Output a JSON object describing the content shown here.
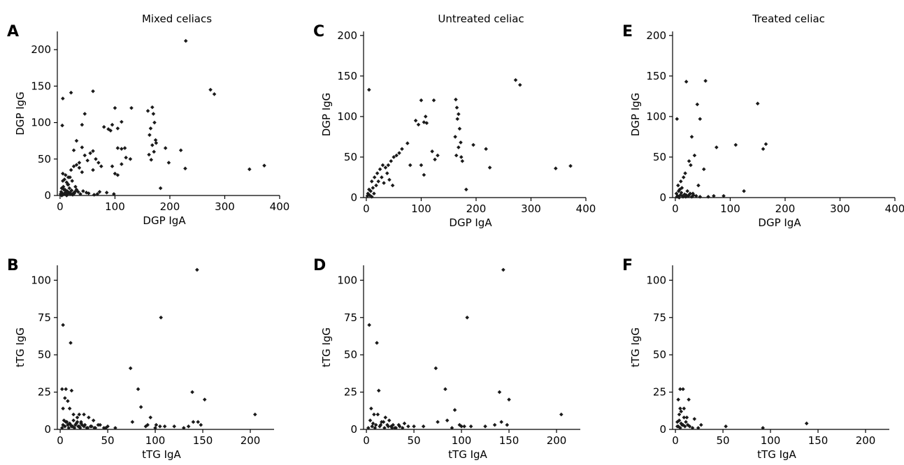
{
  "column_titles": [
    "Mixed celiacs",
    "Untreated celiac",
    "Treated celiac"
  ],
  "chart_data": [
    {
      "panel": "A",
      "type": "scatter",
      "title": "Mixed celiacs",
      "xlabel": "DGP IgA",
      "ylabel": "DGP IgG",
      "xlim": [
        -5,
        400
      ],
      "ylim": [
        0,
        225
      ],
      "xticks": [
        0,
        100,
        200,
        300,
        400
      ],
      "yticks": [
        0,
        50,
        100,
        150,
        200
      ],
      "x": [
        229,
        274,
        281,
        60,
        20,
        5,
        4,
        45,
        40,
        100,
        130,
        112,
        105,
        118,
        160,
        168,
        170,
        172,
        165,
        163,
        174,
        175,
        168,
        171,
        162,
        166,
        80,
        88,
        95,
        92,
        105,
        112,
        120,
        128,
        192,
        198,
        220,
        228,
        345,
        372,
        183,
        95,
        100,
        105,
        112,
        30,
        25,
        40,
        45,
        55,
        60,
        65,
        70,
        75,
        35,
        50,
        60,
        5,
        10,
        15,
        20,
        25,
        30,
        35,
        40,
        5,
        8,
        12,
        15,
        18,
        22,
        28,
        3,
        6,
        9,
        11,
        14,
        17,
        2,
        4,
        7,
        10,
        13,
        16,
        19,
        21,
        24,
        27,
        1,
        3,
        5,
        8,
        12,
        14,
        18,
        23,
        26,
        30,
        33,
        37,
        42,
        48,
        52,
        62,
        68,
        72,
        85,
        98
      ],
      "y": [
        212,
        145,
        139,
        143,
        141,
        133,
        96,
        112,
        97,
        120,
        120,
        101,
        92,
        65,
        116,
        121,
        112,
        100,
        92,
        83,
        76,
        72,
        69,
        60,
        56,
        49,
        94,
        91,
        97,
        89,
        65,
        64,
        52,
        50,
        65,
        45,
        62,
        37,
        36,
        41,
        10,
        40,
        30,
        28,
        43,
        75,
        62,
        66,
        55,
        58,
        61,
        50,
        45,
        40,
        45,
        48,
        35,
        30,
        28,
        25,
        35,
        40,
        42,
        38,
        32,
        20,
        22,
        18,
        15,
        25,
        20,
        12,
        10,
        12,
        8,
        5,
        15,
        10,
        5,
        3,
        8,
        2,
        6,
        4,
        2,
        7,
        3,
        5,
        2,
        0,
        1,
        3,
        0,
        2,
        4,
        1,
        3,
        8,
        5,
        2,
        6,
        4,
        3,
        1,
        2,
        5,
        4,
        2
      ]
    },
    {
      "panel": "B",
      "type": "scatter",
      "xlabel": "tTG IgA",
      "ylabel": "tTG IgG",
      "xlim": [
        -3,
        225
      ],
      "ylim": [
        0,
        110
      ],
      "xticks": [
        0,
        50,
        100,
        150,
        200
      ],
      "yticks": [
        0,
        25,
        50,
        75,
        100
      ],
      "x": [
        144,
        106,
        3,
        11,
        74,
        82,
        139,
        152,
        205,
        2,
        6,
        12,
        5,
        8,
        3,
        10,
        14,
        20,
        25,
        22,
        18,
        30,
        35,
        40,
        50,
        76,
        85,
        92,
        95,
        101,
        105,
        120,
        135,
        140,
        145,
        148,
        4,
        6,
        8,
        10,
        12,
        14,
        16,
        18,
        20,
        22,
        26,
        28,
        32,
        36,
        42,
        46,
        2,
        3,
        5,
        7,
        9,
        11,
        13,
        15,
        17,
        19,
        21,
        23,
        25,
        29,
        33,
        37,
        48,
        58,
        90,
        100,
        110,
        130
      ],
      "y": [
        107,
        75,
        70,
        58,
        41,
        27,
        25,
        20,
        10,
        27,
        27,
        26,
        21,
        19,
        14,
        14,
        10,
        10,
        10,
        5,
        8,
        8,
        6,
        3,
        2,
        5,
        15,
        3,
        8,
        3,
        2,
        2,
        2,
        5,
        5,
        3,
        6,
        5,
        3,
        4,
        2,
        6,
        3,
        5,
        2,
        4,
        3,
        1,
        2,
        1,
        3,
        1,
        1,
        3,
        2,
        5,
        1,
        3,
        2,
        1,
        4,
        2,
        1,
        3,
        2,
        1,
        2,
        1,
        1,
        1,
        2,
        1,
        2,
        1
      ]
    },
    {
      "panel": "C",
      "type": "scatter",
      "title": "Untreated celiac",
      "xlabel": "DGP IgA",
      "ylabel": "DGP IgG",
      "xlim": [
        -5,
        400
      ],
      "ylim": [
        0,
        205
      ],
      "xticks": [
        0,
        100,
        200,
        300,
        400
      ],
      "yticks": [
        0,
        50,
        100,
        150,
        200
      ],
      "x": [
        5,
        272,
        280,
        100,
        108,
        123,
        163,
        165,
        168,
        166,
        170,
        162,
        172,
        168,
        164,
        175,
        173,
        90,
        95,
        105,
        110,
        120,
        125,
        130,
        195,
        218,
        225,
        345,
        372,
        182,
        100,
        105,
        60,
        65,
        75,
        80,
        50,
        55,
        45,
        40,
        35,
        30,
        25,
        20,
        15,
        10,
        5,
        3,
        8,
        12,
        18,
        22,
        28,
        32,
        38,
        42,
        48,
        2,
        6,
        10,
        14
      ],
      "y": [
        133,
        145,
        139,
        120,
        100,
        120,
        121,
        111,
        103,
        97,
        85,
        75,
        68,
        62,
        52,
        45,
        50,
        95,
        90,
        93,
        92,
        57,
        47,
        52,
        65,
        60,
        37,
        36,
        39,
        10,
        40,
        28,
        55,
        60,
        67,
        40,
        50,
        52,
        45,
        40,
        37,
        40,
        35,
        30,
        25,
        20,
        10,
        5,
        8,
        12,
        15,
        20,
        25,
        18,
        30,
        22,
        15,
        2,
        3,
        1,
        5
      ]
    },
    {
      "panel": "D",
      "type": "scatter",
      "xlabel": "tTG IgA",
      "ylabel": "tTG IgG",
      "xlim": [
        -3,
        225
      ],
      "ylim": [
        0,
        110
      ],
      "xticks": [
        0,
        50,
        100,
        150,
        200
      ],
      "yticks": [
        0,
        25,
        50,
        75,
        100
      ],
      "x": [
        144,
        106,
        3,
        11,
        73,
        83,
        140,
        150,
        205,
        13,
        5,
        8,
        12,
        16,
        20,
        24,
        28,
        35,
        40,
        50,
        75,
        85,
        93,
        98,
        103,
        110,
        125,
        135,
        142,
        148,
        4,
        7,
        10,
        14,
        18,
        22,
        26,
        30,
        34,
        38,
        44,
        2,
        6,
        9,
        15,
        19,
        23,
        27,
        31,
        60,
        90,
        100
      ],
      "y": [
        107,
        75,
        70,
        58,
        41,
        27,
        25,
        20,
        10,
        26,
        14,
        10,
        10,
        5,
        8,
        6,
        3,
        2,
        4,
        2,
        5,
        6,
        13,
        3,
        2,
        2,
        2,
        3,
        5,
        3,
        6,
        4,
        3,
        2,
        5,
        3,
        2,
        1,
        3,
        1,
        2,
        1,
        2,
        1,
        3,
        1,
        2,
        1,
        1,
        2,
        1,
        2
      ]
    },
    {
      "panel": "E",
      "type": "scatter",
      "title": "Treated celiac",
      "xlabel": "DGP IgA",
      "ylabel": "DGP IgG",
      "xlim": [
        -5,
        400
      ],
      "ylim": [
        0,
        205
      ],
      "xticks": [
        0,
        100,
        200,
        300,
        400
      ],
      "yticks": [
        0,
        50,
        100,
        150,
        200
      ],
      "x": [
        20,
        55,
        40,
        150,
        3,
        45,
        30,
        110,
        160,
        165,
        75,
        35,
        28,
        25,
        18,
        15,
        10,
        5,
        8,
        12,
        22,
        32,
        42,
        52,
        125,
        88,
        2,
        4,
        6,
        9,
        11,
        14,
        17,
        20,
        24,
        27,
        30,
        33,
        3,
        7,
        13,
        19,
        26,
        38,
        45,
        60,
        70
      ],
      "y": [
        143,
        144,
        115,
        116,
        97,
        97,
        75,
        65,
        60,
        66,
        62,
        52,
        40,
        45,
        30,
        25,
        20,
        15,
        10,
        12,
        8,
        5,
        15,
        35,
        8,
        2,
        5,
        2,
        8,
        3,
        6,
        1,
        4,
        3,
        2,
        5,
        1,
        3,
        1,
        0,
        2,
        1,
        4,
        2,
        1,
        1,
        2
      ]
    },
    {
      "panel": "F",
      "type": "scatter",
      "xlabel": "tTG IgA",
      "ylabel": "tTG IgG",
      "xlim": [
        -3,
        225
      ],
      "ylim": [
        0,
        110
      ],
      "xticks": [
        0,
        50,
        100,
        150,
        200
      ],
      "yticks": [
        0,
        25,
        50,
        75,
        100
      ],
      "x": [
        5,
        8,
        3,
        14,
        5,
        9,
        4,
        12,
        20,
        27,
        53,
        92,
        138,
        2,
        4,
        6,
        7,
        9,
        10,
        11,
        13,
        3,
        5,
        8,
        15,
        18,
        24,
        6,
        2
      ],
      "y": [
        27,
        27,
        20,
        20,
        14,
        14,
        10,
        8,
        7,
        3,
        2,
        1,
        4,
        5,
        6,
        4,
        3,
        8,
        2,
        5,
        3,
        2,
        1,
        3,
        2,
        1,
        1,
        12,
        2
      ]
    }
  ]
}
